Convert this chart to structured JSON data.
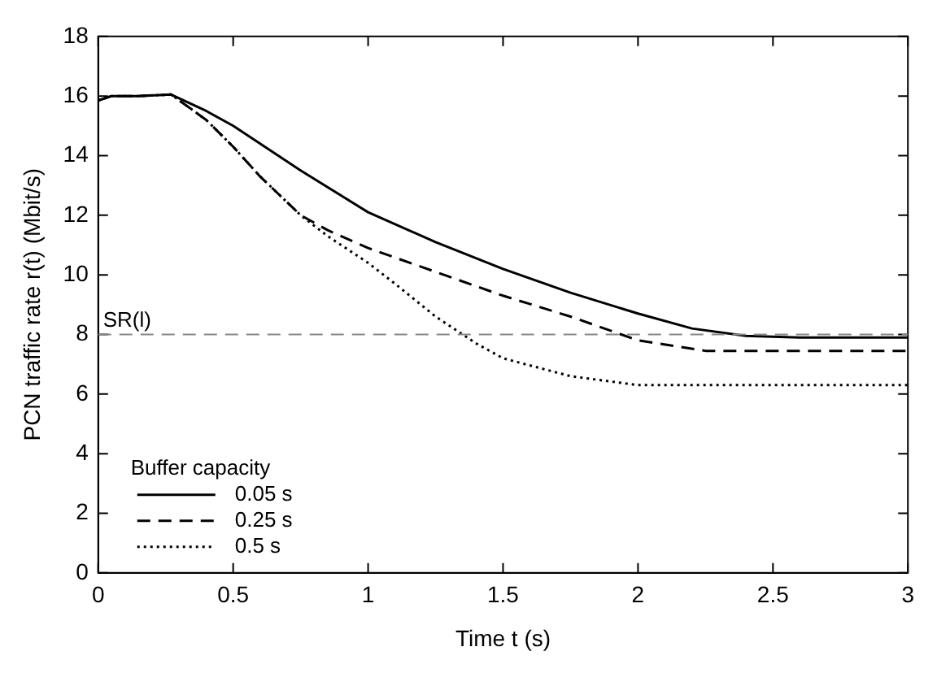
{
  "chart_data": {
    "type": "line",
    "xlabel": "Time t (s)",
    "ylabel": "PCN traffic rate r(t) (Mbit/s)",
    "legend_title": "Buffer capacity",
    "legend": "bottom left",
    "grid": false,
    "marker": "none",
    "xlim": [
      0,
      3
    ],
    "ylim": [
      0,
      18
    ],
    "xticks": [
      0,
      0.5,
      1,
      1.5,
      2,
      2.5,
      3
    ],
    "yticks": [
      0,
      2,
      4,
      6,
      8,
      10,
      12,
      14,
      16,
      18
    ],
    "series": [
      {
        "name": "0.05 s",
        "color": "#000000",
        "line_style": "solid",
        "x": [
          0,
          0.05,
          0.15,
          0.27,
          0.4,
          0.5,
          0.75,
          1,
          1.25,
          1.5,
          1.75,
          2,
          2.2,
          2.4,
          2.6,
          3
        ],
        "values": [
          15.85,
          16,
          16,
          16.05,
          15.5,
          15.0,
          13.5,
          12.1,
          11.1,
          10.2,
          9.4,
          8.7,
          8.2,
          7.95,
          7.9,
          7.9
        ]
      },
      {
        "name": "0.25 s",
        "color": "#000000",
        "line_style": "dashed",
        "x": [
          0,
          0.05,
          0.15,
          0.27,
          0.4,
          0.5,
          0.6,
          0.75,
          0.85,
          1,
          1.25,
          1.5,
          1.75,
          2,
          2.25,
          2.5,
          3
        ],
        "values": [
          15.85,
          16,
          16,
          16.05,
          15.2,
          14.3,
          13.3,
          12.0,
          11.5,
          10.9,
          10.1,
          9.3,
          8.6,
          7.8,
          7.45,
          7.45,
          7.45
        ]
      },
      {
        "name": "0.5 s",
        "color": "#000000",
        "line_style": "dotted",
        "x": [
          0,
          0.05,
          0.15,
          0.27,
          0.4,
          0.5,
          0.6,
          0.75,
          0.85,
          1,
          1.1,
          1.25,
          1.4,
          1.5,
          1.75,
          2,
          2.5,
          3
        ],
        "values": [
          15.85,
          16,
          16,
          16.05,
          15.2,
          14.3,
          13.3,
          12.0,
          11.3,
          10.4,
          9.7,
          8.6,
          7.7,
          7.2,
          6.6,
          6.3,
          6.3,
          6.3
        ]
      }
    ],
    "ref_lines": [
      {
        "axis": "y",
        "value": 8,
        "label": "SR(l)",
        "color": "#888888",
        "line_style": "dashed"
      }
    ]
  }
}
